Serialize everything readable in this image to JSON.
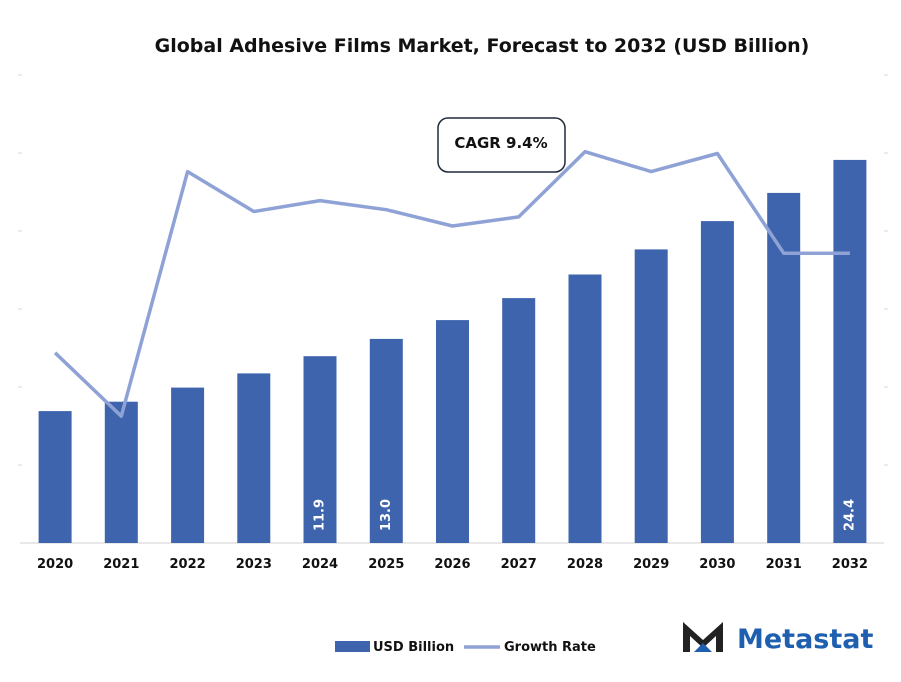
{
  "chart_data": {
    "type": "bar+line",
    "title": "Global Adhesive Films Market, Forecast to 2032 (USD Billion)",
    "categories": [
      "2020",
      "2021",
      "2022",
      "2023",
      "2024",
      "2025",
      "2026",
      "2027",
      "2028",
      "2029",
      "2030",
      "2031",
      "2032"
    ],
    "series": [
      {
        "name": "USD Billion",
        "type": "bar",
        "values": [
          8.4,
          9.0,
          9.9,
          10.8,
          11.9,
          13.0,
          14.2,
          15.6,
          17.1,
          18.7,
          20.5,
          22.3,
          24.4
        ]
      },
      {
        "name": "Growth Rate",
        "type": "line",
        "values": [
          10.5,
          7.0,
          20.5,
          18.3,
          18.9,
          18.4,
          17.5,
          18.0,
          21.6,
          20.5,
          21.5,
          16.0,
          16.0
        ]
      }
    ],
    "data_labels": [
      {
        "category": "2024",
        "text": "11.9"
      },
      {
        "category": "2025",
        "text": "13.0"
      },
      {
        "category": "2032",
        "text": "24.4"
      }
    ],
    "annotation": "CAGR 9.4%",
    "ylim": [
      0,
      30
    ],
    "growth_ylim": [
      0,
      26
    ],
    "legend": [
      "USD Billion",
      "Growth Rate"
    ],
    "legend_position": "bottom-center",
    "colors": {
      "bar": "#3d64ad",
      "line": "#8fa2d6"
    }
  },
  "logo": {
    "text": "Metastat",
    "color": "#1f5fb0"
  }
}
